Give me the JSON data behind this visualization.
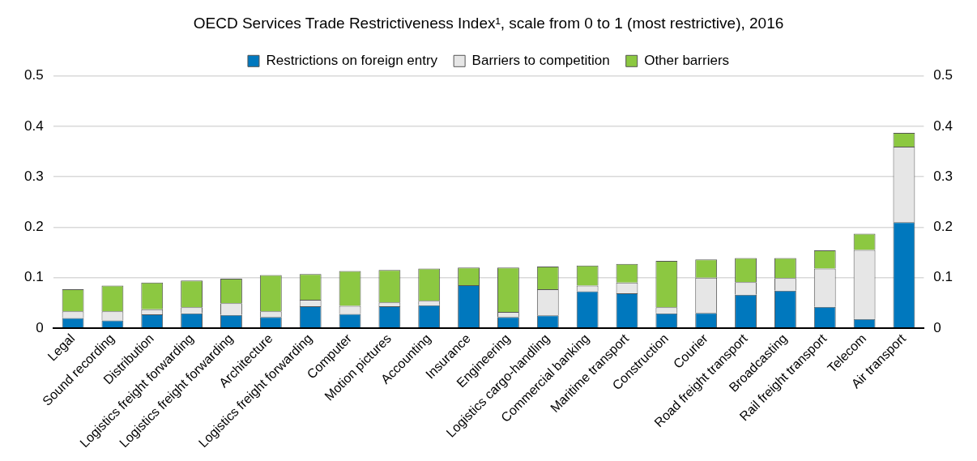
{
  "chart_data": {
    "type": "bar",
    "stacked": true,
    "title": "OECD Services Trade Restrictiveness Index¹, scale from 0 to 1 (most restrictive), 2016",
    "categories": [
      "Legal",
      "Sound recording",
      "Distribution",
      "Logistics freight forwarding",
      "Logistics freight forwarding",
      "Architecture",
      "Logistics freight forwarding",
      "Computer",
      "Motion pictures",
      "Accounting",
      "Insurance",
      "Engineering",
      "Logistics cargo-handling",
      "Commercial banking",
      "Maritime transport",
      "Construction",
      "Courier",
      "Road freight transport",
      "Broadcasting",
      "Rail freight transport",
      "Telecom",
      "Air transport"
    ],
    "series": [
      {
        "name": "Restrictions on foreign entry",
        "color": "#0078be",
        "values": [
          0.02,
          0.015,
          0.027,
          0.029,
          0.026,
          0.022,
          0.043,
          0.028,
          0.043,
          0.045,
          0.085,
          0.022,
          0.025,
          0.073,
          0.069,
          0.029,
          0.03,
          0.066,
          0.074,
          0.042,
          0.018,
          0.21
        ]
      },
      {
        "name": "Barriers to competition",
        "color": "#e6e6e6",
        "values": [
          0.013,
          0.018,
          0.01,
          0.012,
          0.023,
          0.011,
          0.013,
          0.016,
          0.008,
          0.009,
          0,
          0.01,
          0.052,
          0.011,
          0.021,
          0.012,
          0.07,
          0.025,
          0.025,
          0.076,
          0.137,
          0.15
        ]
      },
      {
        "name": "Other barriers",
        "color": "#8cc841",
        "values": [
          0.044,
          0.051,
          0.053,
          0.053,
          0.049,
          0.072,
          0.051,
          0.069,
          0.064,
          0.064,
          0.035,
          0.088,
          0.045,
          0.04,
          0.037,
          0.092,
          0.036,
          0.048,
          0.04,
          0.036,
          0.032,
          0.027
        ]
      }
    ],
    "ylim": [
      0,
      0.5
    ],
    "yticks": [
      0,
      0.1,
      0.2,
      0.3,
      0.4,
      0.5
    ],
    "y2lim": [
      0,
      0.5
    ],
    "y2ticks": [
      0,
      0.1,
      0.2,
      0.3,
      0.4,
      0.5
    ],
    "grid": "y",
    "legend": "top"
  }
}
